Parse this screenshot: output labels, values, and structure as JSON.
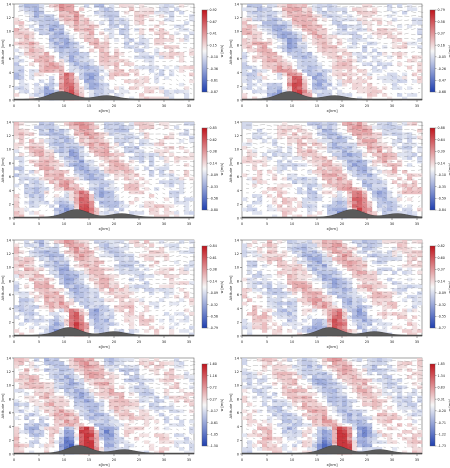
{
  "figure": {
    "colors": {
      "positive": "#c0141c",
      "negative": "#1f3fb0",
      "neutral": "#f7f7f7",
      "terrain": "#5a5a5a",
      "arrow": "#333333"
    }
  },
  "chart_data": [
    {
      "type": "heatmap",
      "xlabel": "x[km]",
      "ylabel": "Altitude [km]",
      "xticks": [
        "0",
        "5",
        "10",
        "15",
        "20",
        "25",
        "30",
        "35"
      ],
      "yticks": [
        "0",
        "2",
        "4",
        "6",
        "8",
        "10",
        "12",
        "14"
      ],
      "colorbar": {
        "ticks": [
          "0.92",
          "0.67",
          "0.41",
          "0.15",
          "-0.10",
          "-0.36",
          "-0.61",
          "-0.87"
        ],
        "unit": "w [m/s]"
      },
      "terrain_peak_x": 9.5
    },
    {
      "type": "heatmap",
      "xlabel": "x[km]",
      "ylabel": "Altitude [km]",
      "xticks": [
        "0",
        "5",
        "10",
        "15",
        "20",
        "25",
        "30",
        "35"
      ],
      "yticks": [
        "0",
        "2",
        "4",
        "6",
        "8",
        "10",
        "12",
        "14"
      ],
      "colorbar": {
        "ticks": [
          "0.79",
          "0.58",
          "0.37",
          "0.16",
          "-0.05",
          "-0.26",
          "-0.47",
          "-0.68"
        ],
        "unit": "w [m/s]"
      },
      "terrain_peak_x": 9.5
    },
    {
      "type": "heatmap",
      "xlabel": "x[km]",
      "ylabel": "Altitude [km]",
      "xticks": [
        "0",
        "5",
        "10",
        "15",
        "20",
        "25",
        "30",
        "35"
      ],
      "yticks": [
        "0",
        "2",
        "4",
        "6",
        "8",
        "10",
        "12",
        "14"
      ],
      "colorbar": {
        "ticks": [
          "0.85",
          "0.62",
          "0.38",
          "0.14",
          "-0.09",
          "-0.33",
          "-0.56",
          "-0.80"
        ],
        "unit": "w [m/s]"
      },
      "terrain_peak_x": 12.5
    },
    {
      "type": "heatmap",
      "xlabel": "x[km]",
      "ylabel": "Altitude [km]",
      "xticks": [
        "0",
        "5",
        "10",
        "15",
        "20",
        "25",
        "30",
        "35"
      ],
      "yticks": [
        "0",
        "2",
        "4",
        "6",
        "8",
        "10",
        "12",
        "14"
      ],
      "colorbar": {
        "ticks": [
          "0.88",
          "0.64",
          "0.39",
          "0.14",
          "-0.10",
          "-0.35",
          "-0.59",
          "-0.84"
        ],
        "unit": "w [m/s]"
      },
      "terrain_peak_x": 22.0
    },
    {
      "type": "heatmap",
      "xlabel": "x[km]",
      "ylabel": "Altitude [km]",
      "xticks": [
        "0",
        "5",
        "10",
        "15",
        "20",
        "25",
        "30",
        "35"
      ],
      "yticks": [
        "0",
        "2",
        "4",
        "6",
        "8",
        "10",
        "12",
        "14"
      ],
      "colorbar": {
        "ticks": [
          "0.84",
          "0.61",
          "0.38",
          "0.14",
          "-0.09",
          "-0.32",
          "-0.56",
          "-0.79"
        ],
        "unit": "w [m/s]"
      },
      "terrain_peak_x": 11.0
    },
    {
      "type": "heatmap",
      "xlabel": "x[km]",
      "ylabel": "Altitude [km]",
      "xticks": [
        "0",
        "5",
        "10",
        "15",
        "20",
        "25",
        "30",
        "35"
      ],
      "yticks": [
        "0",
        "2",
        "4",
        "6",
        "8",
        "10",
        "12",
        "14"
      ],
      "colorbar": {
        "ticks": [
          "0.82",
          "0.60",
          "0.37",
          "0.14",
          "-0.09",
          "-0.32",
          "-0.55",
          "-0.77"
        ],
        "unit": "w [m/s]"
      },
      "terrain_peak_x": 17.5
    },
    {
      "type": "heatmap",
      "xlabel": "x[km]",
      "ylabel": "Altitude [km]",
      "xticks": [
        "0",
        "5",
        "10",
        "15",
        "20",
        "25",
        "30",
        "35"
      ],
      "yticks": [
        "0",
        "2",
        "4",
        "6",
        "8",
        "10",
        "12",
        "14"
      ],
      "colorbar": {
        "ticks": [
          "1.60",
          "1.16",
          "0.72",
          "0.27",
          "-0.17",
          "-0.61",
          "-1.05",
          "-1.50"
        ],
        "unit": "w [m/s]"
      },
      "terrain_peak_x": 13.0
    },
    {
      "type": "heatmap",
      "xlabel": "x[km]",
      "ylabel": "Altitude [km]",
      "xticks": [
        "0",
        "5",
        "10",
        "15",
        "20",
        "25",
        "30",
        "35"
      ],
      "yticks": [
        "0",
        "2",
        "4",
        "6",
        "8",
        "10",
        "12",
        "14"
      ],
      "colorbar": {
        "ticks": [
          "1.85",
          "1.34",
          "0.83",
          "0.31",
          "-0.20",
          "-0.71",
          "-1.22",
          "-1.73"
        ],
        "unit": "w [m/s]"
      },
      "terrain_peak_x": 18.5
    }
  ]
}
